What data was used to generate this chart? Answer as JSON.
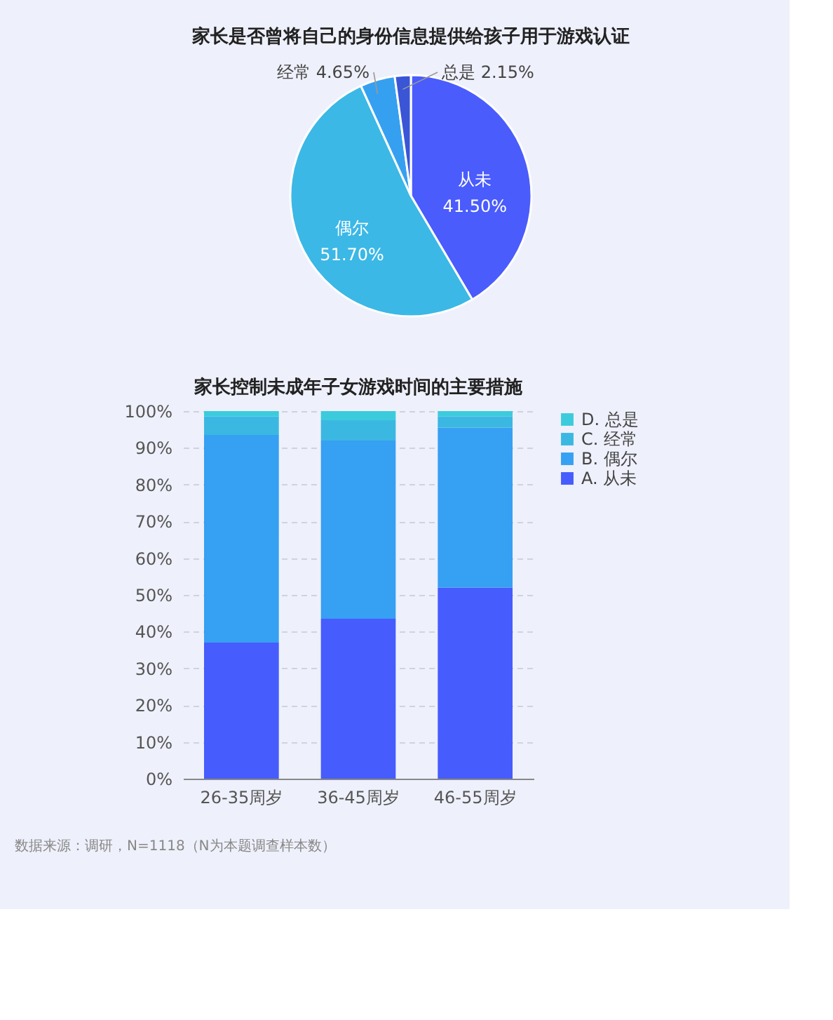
{
  "chart_data": [
    {
      "type": "pie",
      "title": "家长是否曾将自己的身份信息提供给孩子用于游戏认证",
      "categories": [
        "从未",
        "偶尔",
        "经常",
        "总是"
      ],
      "values": [
        41.5,
        51.7,
        4.65,
        2.15
      ],
      "value_labels": [
        "41.50%",
        "51.70%",
        "4.65%",
        "2.15%"
      ],
      "colors": [
        "#4a5cfc",
        "#3bb8e6",
        "#36a0f0",
        "#3a55d6"
      ]
    },
    {
      "type": "bar",
      "title": "家长控制未成年子女游戏时间的主要措施",
      "categories": [
        "26-35周岁",
        "36-45周岁",
        "46-55周岁"
      ],
      "stacked": true,
      "series": [
        {
          "name": "A. 从未",
          "color": "#465cfc",
          "values": [
            37,
            43.5,
            52
          ]
        },
        {
          "name": "B. 偶尔",
          "color": "#36a0f2",
          "values": [
            56.5,
            48.5,
            43.5
          ]
        },
        {
          "name": "C. 经常",
          "color": "#3bb8e2",
          "values": [
            5,
            5.5,
            3
          ]
        },
        {
          "name": "D. 总是",
          "color": "#3ccbdc",
          "values": [
            1.5,
            2.5,
            1.5
          ]
        }
      ],
      "ylim": [
        0,
        100
      ],
      "yticks": [
        {
          "value": 0,
          "label": "0%"
        },
        {
          "value": 10,
          "label": "10%"
        },
        {
          "value": 20,
          "label": "20%"
        },
        {
          "value": 30,
          "label": "30%"
        },
        {
          "value": 40,
          "label": "40%"
        },
        {
          "value": 50,
          "label": "50%"
        },
        {
          "value": 60,
          "label": "60%"
        },
        {
          "value": 70,
          "label": "70%"
        },
        {
          "value": 80,
          "label": "80%"
        },
        {
          "value": 90,
          "label": "90%"
        },
        {
          "value": 100,
          "label": "100%"
        }
      ],
      "grid": "y",
      "legend": "right",
      "annotations": [
        "数据来源：调研，N=1118（N为本题调查样本数）"
      ]
    }
  ]
}
